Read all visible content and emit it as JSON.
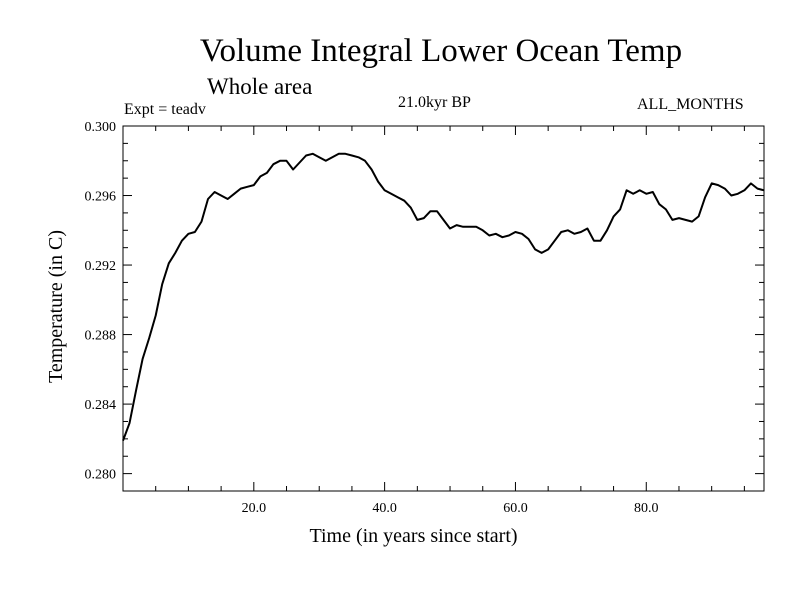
{
  "header": {
    "title": "Volume Integral Lower Ocean Temp",
    "subtitle": "Whole area",
    "experiment": "Expt = teadv",
    "period": "21.0kyr BP",
    "months": "ALL_MONTHS"
  },
  "chart_data": {
    "type": "line",
    "title": "Volume Integral Lower Ocean Temp",
    "xlabel": "Time (in years since start)",
    "ylabel": "Temperature (in C)",
    "xlim": [
      0,
      98
    ],
    "ylim": [
      0.279,
      0.3
    ],
    "xticks": [
      20,
      40,
      60,
      80
    ],
    "xticklabels": [
      "20.0",
      "40.0",
      "60.0",
      "80.0"
    ],
    "yticks": [
      0.28,
      0.284,
      0.288,
      0.292,
      0.296,
      0.3
    ],
    "yticklabels": [
      "0.280",
      "0.284",
      "0.288",
      "0.292",
      "0.296",
      "0.300"
    ],
    "grid": false,
    "series": [
      {
        "name": "Temperature",
        "x": [
          0,
          1,
          2,
          3,
          4,
          5,
          6,
          7,
          8,
          9,
          10,
          11,
          12,
          13,
          14,
          15,
          16,
          17,
          18,
          19,
          20,
          21,
          22,
          23,
          24,
          25,
          26,
          27,
          28,
          29,
          30,
          31,
          32,
          33,
          34,
          35,
          36,
          37,
          38,
          39,
          40,
          41,
          42,
          43,
          44,
          45,
          46,
          47,
          48,
          49,
          50,
          51,
          52,
          53,
          54,
          55,
          56,
          57,
          58,
          59,
          60,
          61,
          62,
          63,
          64,
          65,
          66,
          67,
          68,
          69,
          70,
          71,
          72,
          73,
          74,
          75,
          76,
          77,
          78,
          79,
          80,
          81,
          82,
          83,
          84,
          85,
          86,
          87,
          88,
          89,
          90,
          91,
          92,
          93,
          94,
          95,
          96,
          97,
          98
        ],
        "values": [
          0.2819,
          0.2829,
          0.2848,
          0.2866,
          0.2878,
          0.2891,
          0.2909,
          0.2921,
          0.2927,
          0.2934,
          0.2938,
          0.2939,
          0.2945,
          0.2958,
          0.2962,
          0.296,
          0.2958,
          0.2961,
          0.2964,
          0.2965,
          0.2966,
          0.2971,
          0.2973,
          0.2978,
          0.298,
          0.298,
          0.2975,
          0.2979,
          0.2983,
          0.2984,
          0.2982,
          0.298,
          0.2982,
          0.2984,
          0.2984,
          0.2983,
          0.2982,
          0.298,
          0.2975,
          0.2968,
          0.2963,
          0.2961,
          0.2959,
          0.2957,
          0.2953,
          0.2946,
          0.2947,
          0.2951,
          0.2951,
          0.2946,
          0.2941,
          0.2943,
          0.2942,
          0.2942,
          0.2942,
          0.294,
          0.2937,
          0.2938,
          0.2936,
          0.2937,
          0.2939,
          0.2938,
          0.2935,
          0.2929,
          0.2927,
          0.2929,
          0.2934,
          0.2939,
          0.294,
          0.2938,
          0.2939,
          0.2941,
          0.2934,
          0.2934,
          0.294,
          0.2948,
          0.2952,
          0.2963,
          0.2961,
          0.2963,
          0.2961,
          0.2962,
          0.2955,
          0.2952,
          0.2946,
          0.2947,
          0.2946,
          0.2945,
          0.2948,
          0.2959,
          0.2967,
          0.2966,
          0.2964,
          0.296,
          0.2961,
          0.2963,
          0.2967,
          0.2964,
          0.2963
        ]
      }
    ]
  }
}
